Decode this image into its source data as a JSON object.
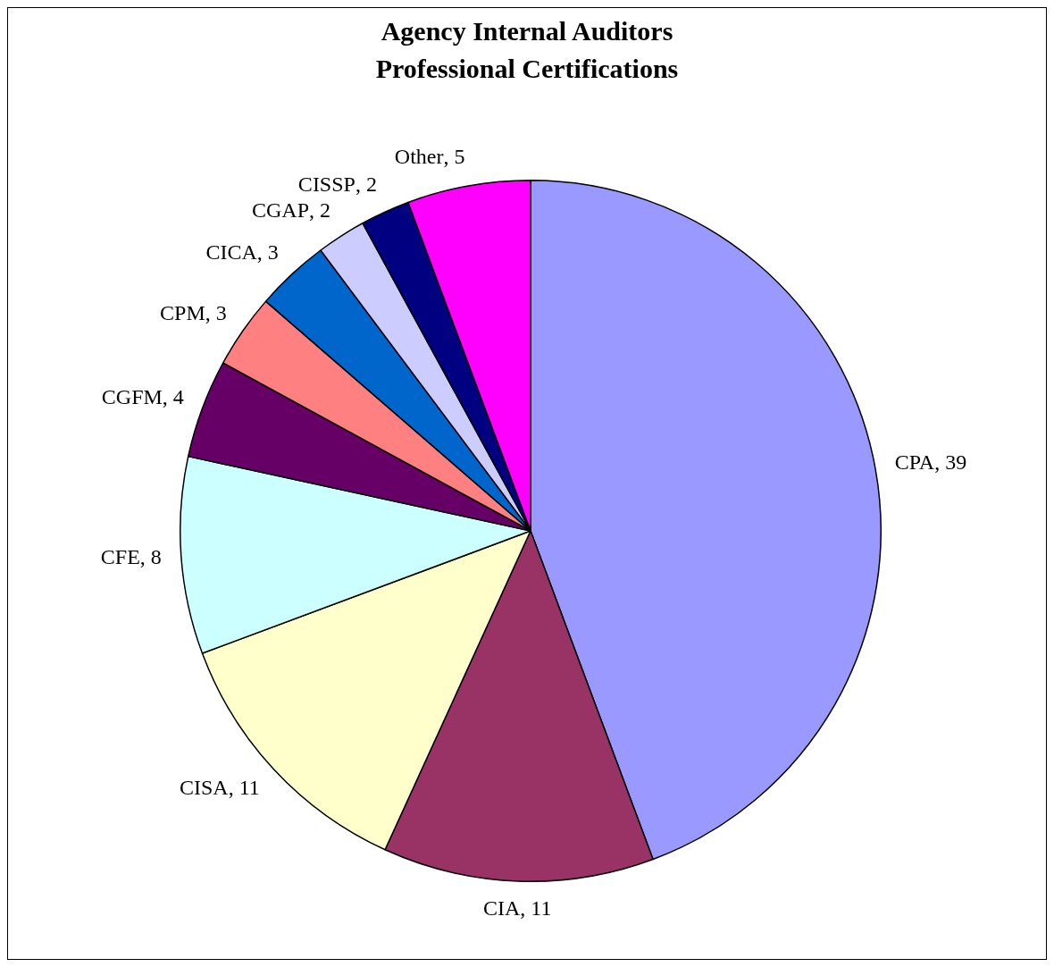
{
  "chart_data": {
    "type": "pie",
    "title": "Agency Internal Auditors\nProfessional Certifications",
    "categories": [
      "CPA",
      "CIA",
      "CISA",
      "CFE",
      "CGFM",
      "CPM",
      "CICA",
      "CGAP",
      "CISSP",
      "Other"
    ],
    "values": [
      39,
      11,
      11,
      8,
      4,
      3,
      3,
      2,
      2,
      5
    ],
    "colors": [
      "#9999ff",
      "#993366",
      "#ffffcc",
      "#ccffff",
      "#660066",
      "#ff8080",
      "#0066cc",
      "#ccccff",
      "#000080",
      "#ff00ff"
    ],
    "value_labels": [
      ", 39",
      ", 11",
      ", 11",
      ", 8",
      ", 4",
      ", 3",
      ", 3",
      ", 2",
      ", 2",
      ", 5"
    ],
    "legend": false
  }
}
